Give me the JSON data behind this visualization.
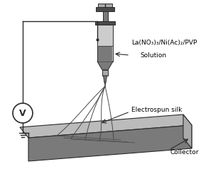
{
  "bg_color": "#ffffff",
  "line_color": "#2a2a2a",
  "gray_dark": "#4a4a4a",
  "gray_mid": "#7a7a7a",
  "gray_light": "#aaaaaa",
  "gray_lighter": "#cccccc",
  "gray_top": "#bbbbbb",
  "label_solution1": "La(NO₃)₃/Ni(Ac)₂/PVP",
  "label_solution2": "Solution",
  "label_silk": "Electrospun silk",
  "label_collector": "Collector",
  "label_V": "V",
  "figsize": [
    3.07,
    2.49
  ],
  "dpi": 100
}
